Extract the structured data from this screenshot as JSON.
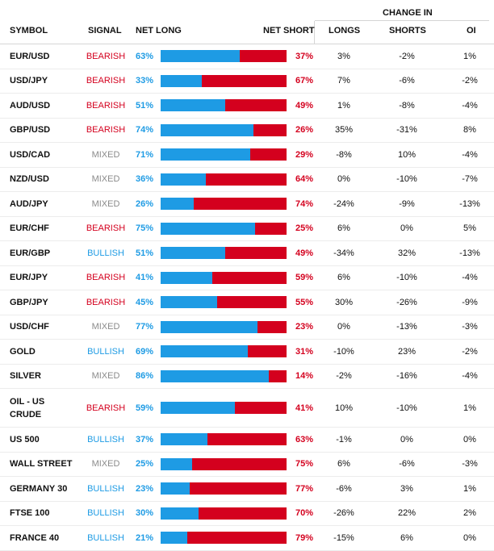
{
  "headers": {
    "symbol": "SYMBOL",
    "signal": "SIGNAL",
    "net_long": "NET LONG",
    "net_short": "NET SHORT",
    "change_in": "CHANGE IN",
    "longs": "LONGS",
    "shorts": "SHORTS",
    "oi": "OI"
  },
  "colors": {
    "bearish": "#d4001e",
    "bullish": "#1e9be4",
    "mixed": "#8a8a8a",
    "long_bar": "#1e9be4",
    "short_bar": "#d4001e"
  },
  "rows": [
    {
      "symbol": "EUR/USD",
      "signal": "BEARISH",
      "signal_type": "bearish",
      "net_long": "63%",
      "long_pct": 63,
      "net_short": "37%",
      "longs": "3%",
      "shorts": "-2%",
      "oi": "1%"
    },
    {
      "symbol": "USD/JPY",
      "signal": "BEARISH",
      "signal_type": "bearish",
      "net_long": "33%",
      "long_pct": 33,
      "net_short": "67%",
      "longs": "7%",
      "shorts": "-6%",
      "oi": "-2%"
    },
    {
      "symbol": "AUD/USD",
      "signal": "BEARISH",
      "signal_type": "bearish",
      "net_long": "51%",
      "long_pct": 51,
      "net_short": "49%",
      "longs": "1%",
      "shorts": "-8%",
      "oi": "-4%"
    },
    {
      "symbol": "GBP/USD",
      "signal": "BEARISH",
      "signal_type": "bearish",
      "net_long": "74%",
      "long_pct": 74,
      "net_short": "26%",
      "longs": "35%",
      "shorts": "-31%",
      "oi": "8%"
    },
    {
      "symbol": "USD/CAD",
      "signal": "MIXED",
      "signal_type": "mixed",
      "net_long": "71%",
      "long_pct": 71,
      "net_short": "29%",
      "longs": "-8%",
      "shorts": "10%",
      "oi": "-4%"
    },
    {
      "symbol": "NZD/USD",
      "signal": "MIXED",
      "signal_type": "mixed",
      "net_long": "36%",
      "long_pct": 36,
      "net_short": "64%",
      "longs": "0%",
      "shorts": "-10%",
      "oi": "-7%"
    },
    {
      "symbol": "AUD/JPY",
      "signal": "MIXED",
      "signal_type": "mixed",
      "net_long": "26%",
      "long_pct": 26,
      "net_short": "74%",
      "longs": "-24%",
      "shorts": "-9%",
      "oi": "-13%"
    },
    {
      "symbol": "EUR/CHF",
      "signal": "BEARISH",
      "signal_type": "bearish",
      "net_long": "75%",
      "long_pct": 75,
      "net_short": "25%",
      "longs": "6%",
      "shorts": "0%",
      "oi": "5%"
    },
    {
      "symbol": "EUR/GBP",
      "signal": "BULLISH",
      "signal_type": "bullish",
      "net_long": "51%",
      "long_pct": 51,
      "net_short": "49%",
      "longs": "-34%",
      "shorts": "32%",
      "oi": "-13%"
    },
    {
      "symbol": "EUR/JPY",
      "signal": "BEARISH",
      "signal_type": "bearish",
      "net_long": "41%",
      "long_pct": 41,
      "net_short": "59%",
      "longs": "6%",
      "shorts": "-10%",
      "oi": "-4%"
    },
    {
      "symbol": "GBP/JPY",
      "signal": "BEARISH",
      "signal_type": "bearish",
      "net_long": "45%",
      "long_pct": 45,
      "net_short": "55%",
      "longs": "30%",
      "shorts": "-26%",
      "oi": "-9%"
    },
    {
      "symbol": "USD/CHF",
      "signal": "MIXED",
      "signal_type": "mixed",
      "net_long": "77%",
      "long_pct": 77,
      "net_short": "23%",
      "longs": "0%",
      "shorts": "-13%",
      "oi": "-3%"
    },
    {
      "symbol": "GOLD",
      "signal": "BULLISH",
      "signal_type": "bullish",
      "net_long": "69%",
      "long_pct": 69,
      "net_short": "31%",
      "longs": "-10%",
      "shorts": "23%",
      "oi": "-2%"
    },
    {
      "symbol": "SILVER",
      "signal": "MIXED",
      "signal_type": "mixed",
      "net_long": "86%",
      "long_pct": 86,
      "net_short": "14%",
      "longs": "-2%",
      "shorts": "-16%",
      "oi": "-4%"
    },
    {
      "symbol": "OIL - US CRUDE",
      "signal": "BEARISH",
      "signal_type": "bearish",
      "net_long": "59%",
      "long_pct": 59,
      "net_short": "41%",
      "longs": "10%",
      "shorts": "-10%",
      "oi": "1%"
    },
    {
      "symbol": "US 500",
      "signal": "BULLISH",
      "signal_type": "bullish",
      "net_long": "37%",
      "long_pct": 37,
      "net_short": "63%",
      "longs": "-1%",
      "shorts": "0%",
      "oi": "0%"
    },
    {
      "symbol": "WALL STREET",
      "signal": "MIXED",
      "signal_type": "mixed",
      "net_long": "25%",
      "long_pct": 25,
      "net_short": "75%",
      "longs": "6%",
      "shorts": "-6%",
      "oi": "-3%"
    },
    {
      "symbol": "GERMANY 30",
      "signal": "BULLISH",
      "signal_type": "bullish",
      "net_long": "23%",
      "long_pct": 23,
      "net_short": "77%",
      "longs": "-6%",
      "shorts": "3%",
      "oi": "1%"
    },
    {
      "symbol": "FTSE 100",
      "signal": "BULLISH",
      "signal_type": "bullish",
      "net_long": "30%",
      "long_pct": 30,
      "net_short": "70%",
      "longs": "-26%",
      "shorts": "22%",
      "oi": "2%"
    },
    {
      "symbol": "FRANCE 40",
      "signal": "BULLISH",
      "signal_type": "bullish",
      "net_long": "21%",
      "long_pct": 21,
      "net_short": "79%",
      "longs": "-15%",
      "shorts": "6%",
      "oi": "0%"
    }
  ]
}
